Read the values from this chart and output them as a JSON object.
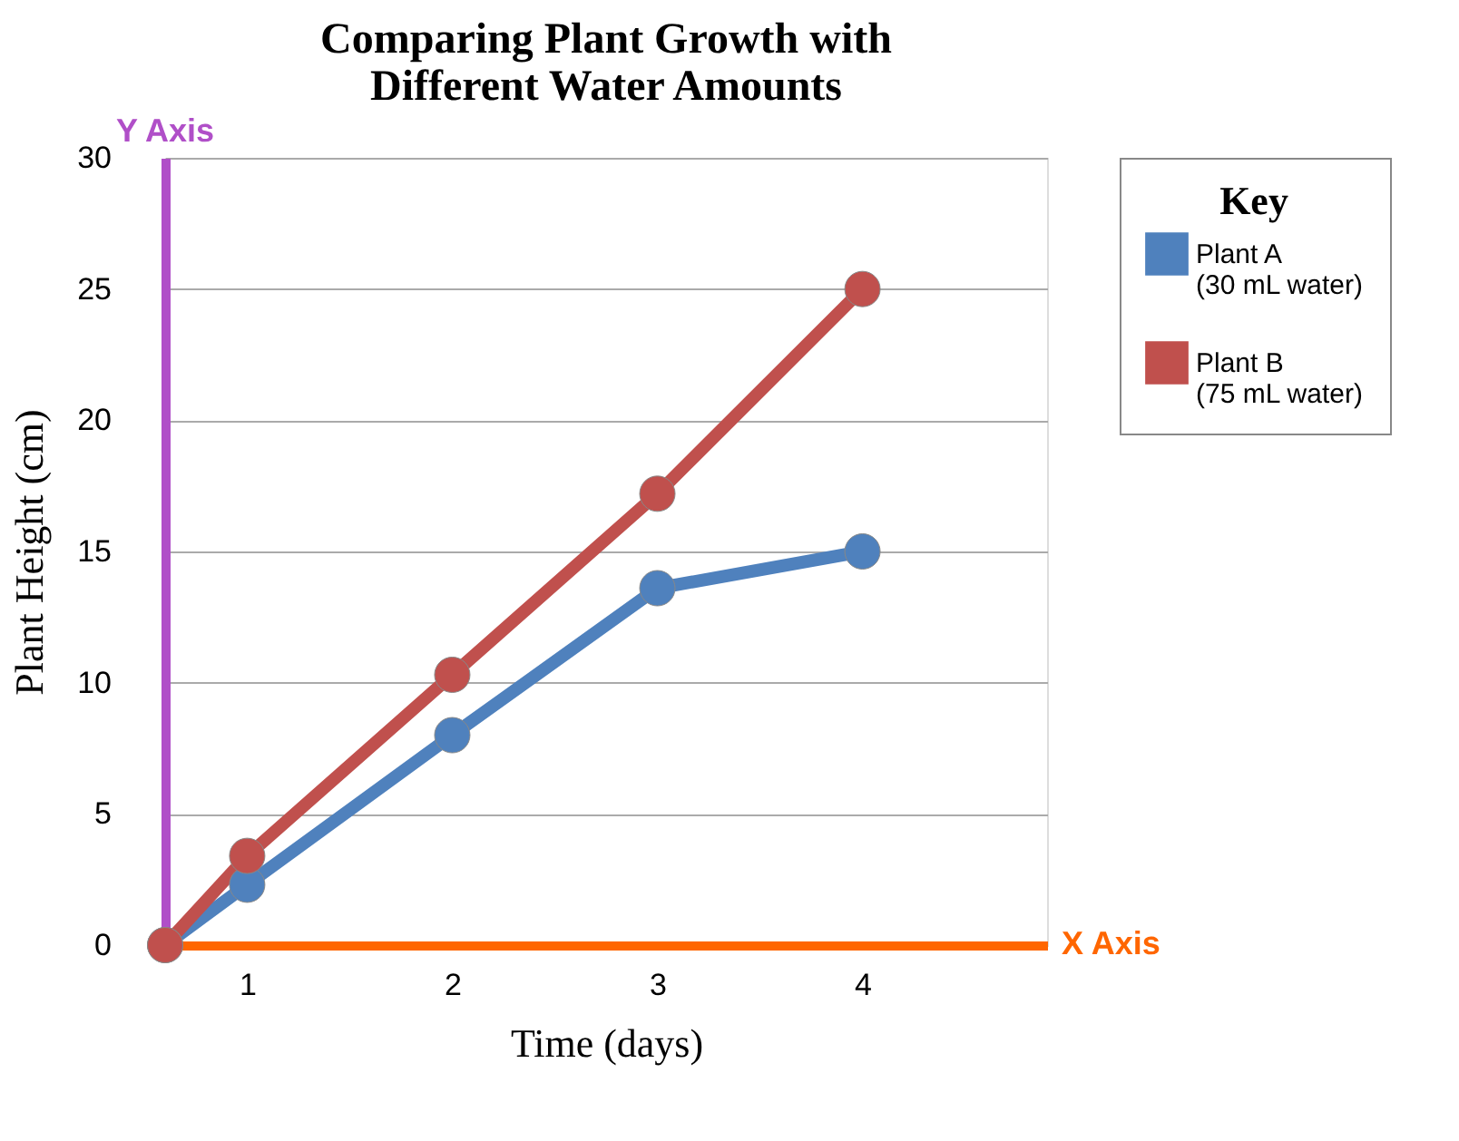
{
  "chart_data": {
    "type": "line",
    "title": "Comparing Plant Growth with Different Water Amounts",
    "xlabel": "Time (days)",
    "ylabel": "Plant Height (cm)",
    "legend_title": "Key",
    "x": [
      0.6,
      1,
      2,
      3,
      4
    ],
    "series": [
      {
        "name": "Plant A\n(30 mL water)",
        "color": "#4f81bd",
        "values": [
          0,
          2.3,
          8.0,
          13.6,
          15.0
        ]
      },
      {
        "name": "Plant B\n(75 mL water)",
        "color": "#c0504d",
        "values": [
          0,
          3.4,
          10.3,
          17.2,
          25.0
        ]
      }
    ],
    "xlim": [
      0.6,
      4.9
    ],
    "xticks": [
      1,
      2,
      3,
      4
    ],
    "ylim": [
      0,
      30
    ],
    "yticks": [
      0,
      5,
      10,
      15,
      20,
      25,
      30
    ],
    "annotations": [
      "Y Axis",
      "X Axis"
    ],
    "grid": "y",
    "legend": "right",
    "marker": "circle",
    "line_style": "solid"
  }
}
